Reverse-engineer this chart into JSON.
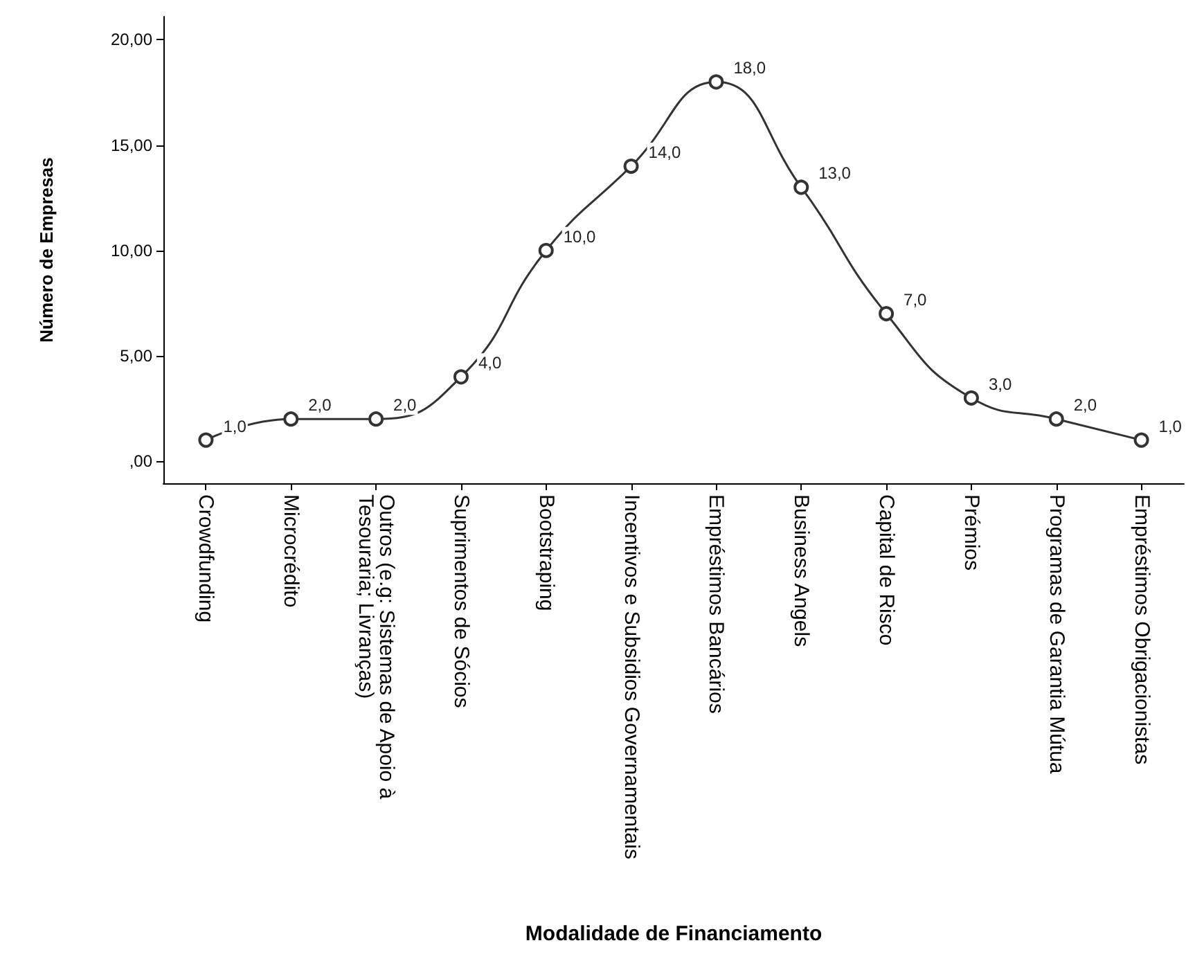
{
  "chart_data": {
    "type": "line",
    "xlabel": "Modalidade de Financiamento",
    "ylabel": "Número de Empresas",
    "categories": [
      "Crowdfunding",
      "Microcrédito",
      "Outros (e.g: Sistemas de Apoio à Tesouraria; Livranças)",
      "Suprimentos de Sócios",
      "Bootstraping",
      "Incentivos e Subsidios Governamentais",
      "Empréstimos Bancários",
      "Business Angels",
      "Capital de Risco",
      "Prémios",
      "Programas de Garantia Mútua",
      "Empréstimos Obrigacionistas"
    ],
    "series": [
      {
        "color": "#333333",
        "values": [
          1,
          2,
          2,
          4,
          10,
          14,
          18,
          13,
          7,
          3,
          2,
          1
        ],
        "value_labels": [
          "1,0",
          "2,0",
          "2,0",
          "4,0",
          "10,0",
          "14,0",
          "18,0",
          "13,0",
          "7,0",
          "3,0",
          "2,0",
          "1,0"
        ]
      }
    ],
    "ylim": [
      -1.05,
      21.1
    ],
    "yticks": [
      {
        "value": 0,
        "label": ",00"
      },
      {
        "value": 5,
        "label": "5,00"
      },
      {
        "value": 10,
        "label": "10,00"
      },
      {
        "value": 15,
        "label": "15,00"
      },
      {
        "value": 20,
        "label": "20,00"
      }
    ],
    "grid": false,
    "marker": "circle",
    "line_style": "solid"
  }
}
